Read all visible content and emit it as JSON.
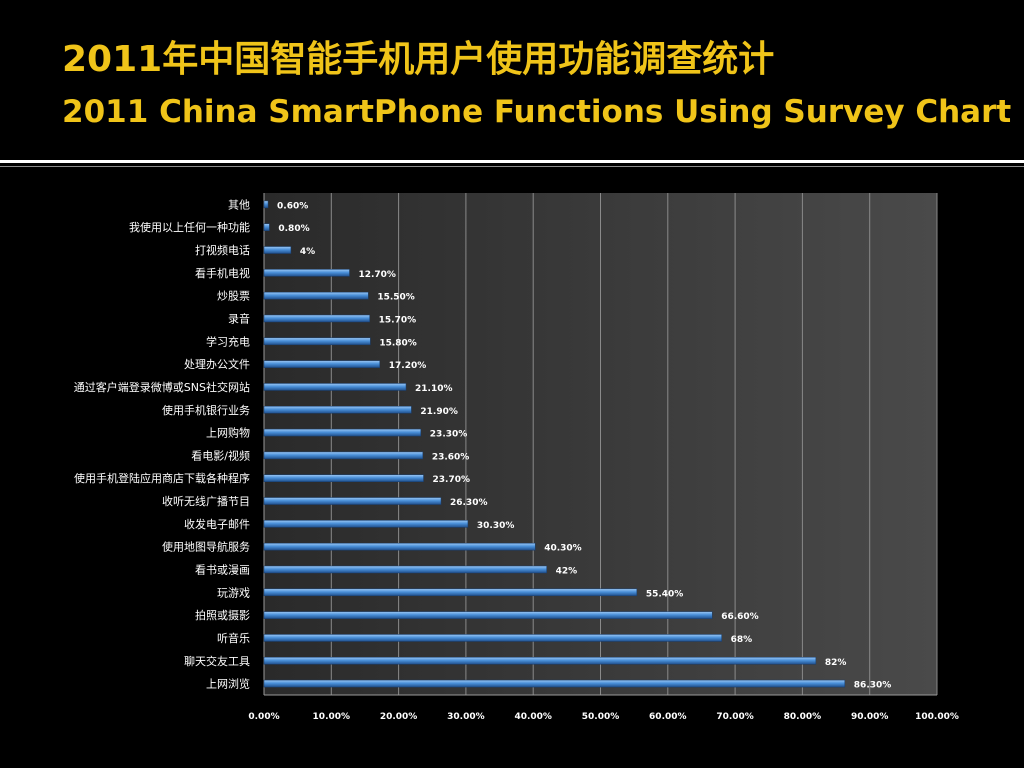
{
  "slide": {
    "title_zh": "2011年中国智能手机用户使用功能调查统计",
    "title_en": "2011 China SmartPhone Functions Using Survey Chart"
  },
  "colors": {
    "background": "#000000",
    "title": "#f0c419",
    "plot_background": "#3a3a3a",
    "bar": "#4a90d9",
    "text": "#ffffff"
  },
  "chart_data": {
    "type": "bar",
    "orientation": "horizontal",
    "categories": [
      "其他",
      "我使用以上任何一种功能",
      "打视频电话",
      "看手机电视",
      "炒股票",
      "录音",
      "学习充电",
      "处理办公文件",
      "通过客户端登录微博或SNS社交网站",
      "使用手机银行业务",
      "上网购物",
      "看电影/视频",
      "使用手机登陆应用商店下载各种程序",
      "收听无线广播节目",
      "收发电子邮件",
      "使用地图导航服务",
      "看书或漫画",
      "玩游戏",
      "拍照或摄影",
      "听音乐",
      "聊天交友工具",
      "上网浏览"
    ],
    "values": [
      0.6,
      0.8,
      4,
      12.7,
      15.5,
      15.7,
      15.8,
      17.2,
      21.1,
      21.9,
      23.3,
      23.6,
      23.7,
      26.3,
      30.3,
      40.3,
      42,
      55.4,
      66.6,
      68,
      82,
      86.3
    ],
    "data_labels": [
      "0.60%",
      "0.80%",
      "4%",
      "12.70%",
      "15.50%",
      "15.70%",
      "15.80%",
      "17.20%",
      "21.10%",
      "21.90%",
      "23.30%",
      "23.60%",
      "23.70%",
      "26.30%",
      "30.30%",
      "40.30%",
      "42%",
      "55.40%",
      "66.60%",
      "68%",
      "82%",
      "86.30%"
    ],
    "xlim": [
      0,
      100
    ],
    "xticks": [
      0,
      10,
      20,
      30,
      40,
      50,
      60,
      70,
      80,
      90,
      100
    ],
    "xtick_labels": [
      "0.00%",
      "10.00%",
      "20.00%",
      "30.00%",
      "40.00%",
      "50.00%",
      "60.00%",
      "70.00%",
      "80.00%",
      "90.00%",
      "100.00%"
    ],
    "grid": true,
    "legend": "none"
  }
}
